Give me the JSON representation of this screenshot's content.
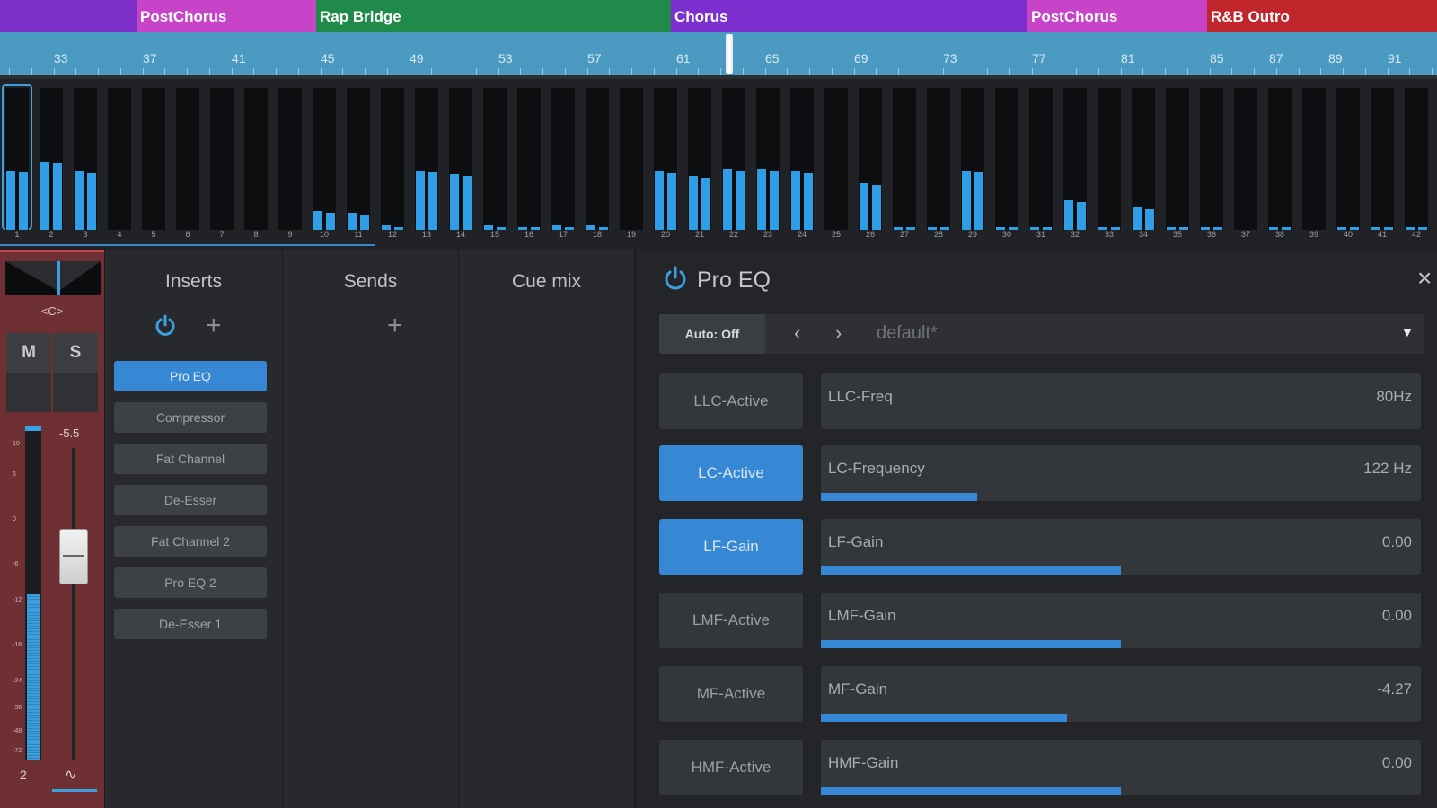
{
  "sections": [
    {
      "label": "",
      "color": "#7e2ec8"
    },
    {
      "label": "PostChorus",
      "color": "#c744c9"
    },
    {
      "label": "Rap Bridge",
      "color": "#1f8a4a"
    },
    {
      "label": "Chorus",
      "color": "#7c2fcf"
    },
    {
      "label": "PostChorus",
      "color": "#c744c9"
    },
    {
      "label": "R&B Outro",
      "color": "#c1262d"
    }
  ],
  "ruler": {
    "labels": [
      "33",
      "37",
      "41",
      "45",
      "49",
      "53",
      "57",
      "61",
      "65",
      "69",
      "73",
      "77",
      "81",
      "85",
      "87",
      "89",
      "91"
    ]
  },
  "meters": {
    "levels": [
      0.42,
      0.48,
      0.41,
      0,
      0,
      0,
      0,
      0,
      0,
      0.13,
      0.12,
      0.03,
      0.42,
      0.39,
      0.03,
      0.02,
      0.03,
      0.03,
      0,
      0.41,
      0.38,
      0.43,
      0.43,
      0.41,
      0,
      0.33,
      0.02,
      0.02,
      0.42,
      0.02,
      0.02,
      0.21,
      0.02,
      0.16,
      0.02,
      0.02,
      0,
      0.02,
      0,
      0.02,
      0.02,
      0.02
    ],
    "numbers": [
      "1",
      "2",
      "3",
      "4",
      "5",
      "6",
      "7",
      "8",
      "9",
      "10",
      "11",
      "12",
      "13",
      "14",
      "15",
      "16",
      "17",
      "18",
      "19",
      "20",
      "21",
      "22",
      "23",
      "24",
      "25",
      "26",
      "27",
      "28",
      "29",
      "30",
      "31",
      "32",
      "33",
      "34",
      "35",
      "36",
      "37",
      "38",
      "39",
      "40",
      "41",
      "42"
    ]
  },
  "channel": {
    "pan_label": "<C>",
    "mute_label": "M",
    "solo_label": "S",
    "fader_value": "-5.5",
    "channel_number": "2",
    "wave_icon": "waveform-icon",
    "meter_level": 0.5,
    "scale": [
      "10",
      "6",
      "0",
      "-6",
      "-12",
      "-18",
      "-24",
      "-36",
      "-48",
      "-72"
    ]
  },
  "inserts": {
    "title": "Inserts",
    "items": [
      {
        "label": "Pro EQ",
        "active": true
      },
      {
        "label": "Compressor",
        "active": false
      },
      {
        "label": "Fat Channel",
        "active": false
      },
      {
        "label": "De-Esser",
        "active": false
      },
      {
        "label": "Fat Channel 2",
        "active": false
      },
      {
        "label": "Pro EQ 2",
        "active": false
      },
      {
        "label": "De-Esser 1",
        "active": false
      }
    ]
  },
  "sends": {
    "title": "Sends"
  },
  "cue": {
    "title": "Cue mix"
  },
  "eq": {
    "title": "Pro EQ",
    "auto_label": "Auto: Off",
    "preset": "default*",
    "params": [
      {
        "button": "LLC-Active",
        "on": false,
        "name": "LLC-Freq",
        "value": "80Hz",
        "fill": 0
      },
      {
        "button": "LC-Active",
        "on": true,
        "name": "LC-Frequency",
        "value": "122 Hz",
        "fill": 0.26
      },
      {
        "button": "LF-Gain",
        "on": true,
        "name": "LF-Gain",
        "value": "0.00",
        "fill": 0.5
      },
      {
        "button": "LMF-Active",
        "on": false,
        "name": "LMF-Gain",
        "value": "0.00",
        "fill": 0.5
      },
      {
        "button": "MF-Active",
        "on": false,
        "name": "MF-Gain",
        "value": "-4.27",
        "fill": 0.41
      },
      {
        "button": "HMF-Active",
        "on": false,
        "name": "HMF-Gain",
        "value": "0.00",
        "fill": 0.5
      }
    ]
  },
  "colors": {
    "accent": "#3788d4",
    "meter": "#2f9ee6",
    "channel": "#6e3033"
  }
}
